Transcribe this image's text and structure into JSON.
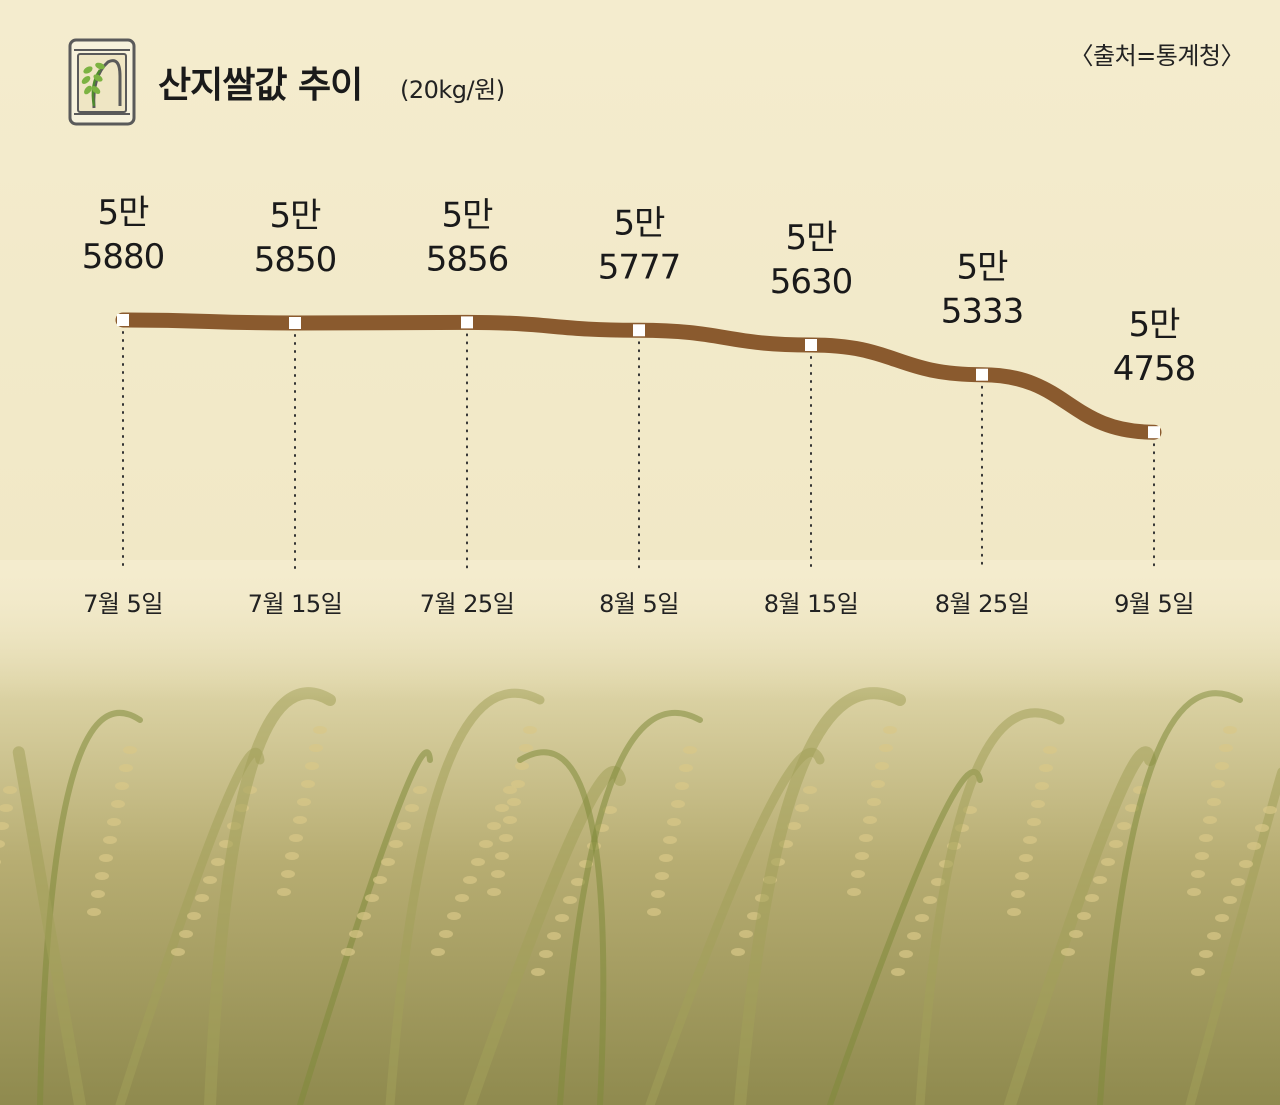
{
  "header": {
    "title": "산지쌀값 추이",
    "unit": "(20kg/원)",
    "source": "〈출처=통계청〉",
    "icon": "rice-bag-icon"
  },
  "colors": {
    "background": "#f4ecce",
    "line": "#8a5a2e",
    "marker": "#ffffff",
    "text": "#1a1a1a"
  },
  "chart_data": {
    "type": "line",
    "title": "산지쌀값 추이",
    "unit": "(20kg/원)",
    "categories": [
      "7월 5일",
      "7월 15일",
      "7월 25일",
      "8월 5일",
      "8월 15일",
      "8월 25일",
      "9월 5일"
    ],
    "values": [
      55880,
      55850,
      55856,
      55777,
      55630,
      55333,
      54758
    ],
    "data_labels": [
      [
        "5만",
        "5880"
      ],
      [
        "5만",
        "5850"
      ],
      [
        "5만",
        "5856"
      ],
      [
        "5만",
        "5777"
      ],
      [
        "5만",
        "5630"
      ],
      [
        "5만",
        "5333"
      ],
      [
        "5만",
        "4758"
      ]
    ],
    "grid": false,
    "legend": "none"
  }
}
